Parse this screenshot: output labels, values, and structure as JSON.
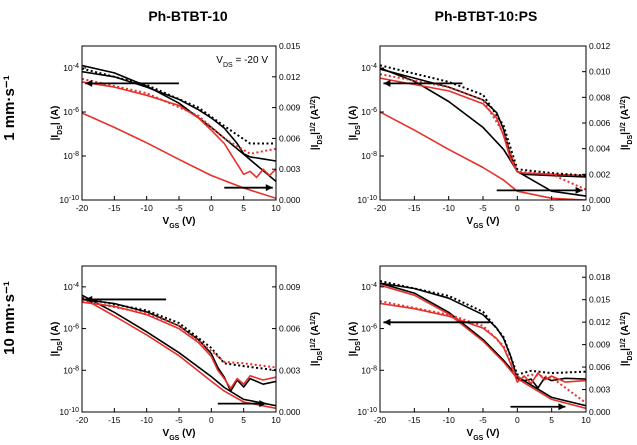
{
  "figure": {
    "column_titles": [
      "Ph-BTBT-10",
      "Ph-BTBT-10:PS"
    ],
    "row_titles": [
      "1 mm·s⁻¹",
      "10 mm·s⁻¹"
    ]
  },
  "colors": {
    "forward": "#000000",
    "reverse": "#e8302a"
  },
  "chart_data": [
    {
      "type": "line",
      "panel": "Ph-BTBT-10, 1 mm·s⁻¹",
      "xlabel": "V_GS (V)",
      "ylabel": "|I_DS| (A)",
      "y2label": "|I_DS|^1/2 (A^1/2)",
      "xlim": [
        -20,
        10
      ],
      "ylim_log": [
        1e-10,
        0.001
      ],
      "y2lim": [
        0,
        0.015
      ],
      "xticks": [
        "-20",
        "-15",
        "-10",
        "-5",
        "0",
        "5",
        "10"
      ],
      "yticks": [
        "10^-10",
        "10^-8",
        "10^-6",
        "10^-4"
      ],
      "y2ticks": [
        "0.000",
        "0.003",
        "0.006",
        "0.009",
        "0.012",
        "0.015"
      ],
      "annotation": "V_DS = -20 V",
      "series": [
        {
          "axis": "left",
          "color": "forward",
          "x": [
            -20,
            -15,
            -10,
            -5,
            0,
            5,
            10
          ],
          "y": [
            0.00013,
            6e-05,
            1.5e-05,
            2.5e-06,
            2e-07,
            1.2e-08,
            7e-10
          ]
        },
        {
          "axis": "left",
          "color": "reverse",
          "x": [
            -20,
            -15,
            -10,
            -5,
            0,
            5,
            10
          ],
          "y": [
            9e-07,
            2e-07,
            4e-08,
            7e-09,
            1.3e-09,
            3.5e-10,
            1.2e-10
          ]
        },
        {
          "axis": "right",
          "color": "forward",
          "x": [
            -20,
            -15,
            -10,
            -5,
            -2,
            0,
            2,
            4,
            5,
            6,
            8,
            10
          ],
          "y": [
            0.0125,
            0.012,
            0.011,
            0.0098,
            0.0088,
            0.008,
            0.007,
            0.0055,
            0.0045,
            0.0042,
            0.004,
            0.0038
          ]
        },
        {
          "axis": "right",
          "color": "reverse",
          "x": [
            -20,
            -15,
            -10,
            -5,
            -2,
            0,
            2,
            3,
            4,
            5,
            6,
            7,
            8,
            9,
            10
          ],
          "y": [
            0.0115,
            0.011,
            0.0102,
            0.0092,
            0.008,
            0.0068,
            0.0055,
            0.0045,
            0.0035,
            0.0025,
            0.0028,
            0.0022,
            0.003,
            0.0024,
            0.003
          ]
        },
        {
          "axis": "right",
          "color": "forward",
          "dashed": true,
          "x": [
            -20,
            -10,
            -2,
            2,
            6,
            10
          ],
          "y": [
            0.0128,
            0.0112,
            0.009,
            0.0072,
            0.0055,
            0.0055
          ]
        },
        {
          "axis": "right",
          "color": "reverse",
          "dashed": true,
          "x": [
            -20,
            -10,
            -2,
            2,
            6,
            10
          ],
          "y": [
            0.0118,
            0.0104,
            0.0082,
            0.006,
            0.0045,
            0.005
          ]
        }
      ],
      "arrows": [
        {
          "from": [
            -5,
            2e-05
          ],
          "to": [
            -19.5,
            2e-05
          ],
          "axis": "left"
        },
        {
          "from": [
            2,
            0.0012
          ],
          "to": [
            9.5,
            0.0012
          ],
          "axis": "right"
        }
      ]
    },
    {
      "type": "line",
      "panel": "Ph-BTBT-10:PS, 1 mm·s⁻¹",
      "xlabel": "V_GS (V)",
      "ylabel": "|I_DS| (A)",
      "y2label": "|I_DS|^1/2 (A^1/2)",
      "xlim": [
        -20,
        10
      ],
      "ylim_log": [
        1e-10,
        0.001
      ],
      "y2lim": [
        0,
        0.012
      ],
      "xticks": [
        "-20",
        "-15",
        "-10",
        "-5",
        "0",
        "5",
        "10"
      ],
      "yticks": [
        "10^-10",
        "10^-8",
        "10^-6",
        "10^-4"
      ],
      "y2ticks": [
        "0.000",
        "0.002",
        "0.004",
        "0.006",
        "0.008",
        "0.010",
        "0.012"
      ],
      "series": [
        {
          "axis": "left",
          "color": "forward",
          "x": [
            -20,
            -15,
            -10,
            -5,
            -2,
            0,
            5,
            10
          ],
          "y": [
            0.0001,
            2.5e-05,
            3e-06,
            2e-07,
            2e-08,
            2e-09,
            2.5e-10,
            1.5e-10
          ]
        },
        {
          "axis": "left",
          "color": "reverse",
          "x": [
            -20,
            -15,
            -10,
            -5,
            -2,
            0,
            5,
            10
          ],
          "y": [
            1e-06,
            1.5e-07,
            2e-08,
            3e-09,
            8e-10,
            2.5e-10,
            1.2e-10,
            1e-10
          ]
        },
        {
          "axis": "right",
          "color": "forward",
          "x": [
            -20,
            -15,
            -10,
            -5,
            -3,
            -2,
            -1,
            0,
            1,
            5,
            10
          ],
          "y": [
            0.0102,
            0.0095,
            0.0088,
            0.0078,
            0.0068,
            0.0055,
            0.0035,
            0.0022,
            0.002,
            0.0019,
            0.0018
          ]
        },
        {
          "axis": "right",
          "color": "reverse",
          "x": [
            -20,
            -15,
            -10,
            -5,
            -3,
            -2,
            -1,
            0,
            1,
            5,
            10
          ],
          "y": [
            0.0095,
            0.009,
            0.0085,
            0.0075,
            0.0064,
            0.005,
            0.0032,
            0.0022,
            0.0021,
            0.002,
            0.0019
          ]
        },
        {
          "axis": "right",
          "color": "forward",
          "dashed": true,
          "x": [
            -20,
            -10,
            -5,
            -2,
            0,
            5,
            10
          ],
          "y": [
            0.0105,
            0.0092,
            0.0082,
            0.0058,
            0.0024,
            0.0021,
            0.0019
          ]
        },
        {
          "axis": "right",
          "color": "reverse",
          "dashed": true,
          "x": [
            -20,
            -10,
            -5,
            -2,
            0,
            5,
            10
          ],
          "y": [
            0.0098,
            0.0088,
            0.0078,
            0.0052,
            0.0022,
            0.002,
            0.0008
          ]
        }
      ],
      "arrows": [
        {
          "from": [
            -8,
            2e-05
          ],
          "to": [
            -19.5,
            2e-05
          ],
          "axis": "left"
        },
        {
          "from": [
            -3,
            0.00075
          ],
          "to": [
            9.5,
            0.00075
          ],
          "axis": "right"
        }
      ]
    },
    {
      "type": "line",
      "panel": "Ph-BTBT-10, 10 mm·s⁻¹",
      "xlabel": "V_GS (V)",
      "ylabel": "|I_DS| (A)",
      "y2label": "|I_DS|^1/2 (A^1/2)",
      "xlim": [
        -20,
        10
      ],
      "ylim_log": [
        1e-10,
        0.001
      ],
      "y2lim": [
        0,
        0.0105
      ],
      "xticks": [
        "-20",
        "-15",
        "-10",
        "-5",
        "0",
        "5",
        "10"
      ],
      "yticks": [
        "10^-10",
        "10^-8",
        "10^-6",
        "10^-4"
      ],
      "y2ticks": [
        "0.000",
        "0.003",
        "0.006",
        "0.009"
      ],
      "series": [
        {
          "axis": "left",
          "color": "forward",
          "x": [
            -20,
            -15,
            -10,
            -5,
            0,
            2,
            5,
            10
          ],
          "y": [
            4e-05,
            6e-06,
            7e-07,
            7e-08,
            5e-09,
            1.5e-09,
            4e-10,
            2e-10
          ]
        },
        {
          "axis": "left",
          "color": "reverse",
          "x": [
            -20,
            -15,
            -10,
            -5,
            0,
            2,
            5,
            10
          ],
          "y": [
            3e-05,
            4e-06,
            5e-07,
            5e-08,
            3e-09,
            1e-09,
            3e-10,
            1.5e-10
          ]
        },
        {
          "axis": "right",
          "color": "forward",
          "x": [
            -20,
            -15,
            -10,
            -5,
            -2,
            0,
            1,
            2,
            3,
            4,
            5,
            6,
            8,
            10
          ],
          "y": [
            0.0081,
            0.0078,
            0.0072,
            0.0062,
            0.0052,
            0.0042,
            0.0032,
            0.0025,
            0.0015,
            0.0023,
            0.0018,
            0.0024,
            0.002,
            0.0022
          ]
        },
        {
          "axis": "right",
          "color": "reverse",
          "x": [
            -20,
            -15,
            -10,
            -5,
            -2,
            0,
            1,
            2,
            3,
            4,
            5,
            6,
            8,
            10
          ],
          "y": [
            0.0079,
            0.0076,
            0.007,
            0.006,
            0.005,
            0.004,
            0.003,
            0.0024,
            0.0017,
            0.0024,
            0.002,
            0.0026,
            0.0023,
            0.0025
          ]
        },
        {
          "axis": "right",
          "color": "forward",
          "dashed": true,
          "x": [
            -20,
            -10,
            -5,
            0,
            2,
            5,
            10
          ],
          "y": [
            0.0082,
            0.0073,
            0.0064,
            0.0046,
            0.0035,
            0.0033,
            0.003
          ]
        },
        {
          "axis": "right",
          "color": "reverse",
          "dashed": true,
          "x": [
            -20,
            -10,
            -5,
            0,
            2,
            5,
            10
          ],
          "y": [
            0.008,
            0.0071,
            0.0062,
            0.0044,
            0.0036,
            0.0035,
            0.0032
          ]
        }
      ],
      "arrows": [
        {
          "from": [
            -7,
            2.5e-05
          ],
          "to": [
            -19.5,
            2.5e-05
          ],
          "axis": "left"
        },
        {
          "from": [
            1,
            0.0006
          ],
          "to": [
            8.5,
            0.0006
          ],
          "axis": "right"
        }
      ]
    },
    {
      "type": "line",
      "panel": "Ph-BTBT-10:PS, 10 mm·s⁻¹",
      "xlabel": "V_GS (V)",
      "ylabel": "|I_DS| (A)",
      "y2label": "|I_DS|^1/2 (A^1/2)",
      "xlim": [
        -20,
        10
      ],
      "ylim_log": [
        1e-10,
        0.001
      ],
      "y2lim": [
        0,
        0.0195
      ],
      "xticks": [
        "-20",
        "-15",
        "-10",
        "-5",
        "0",
        "5",
        "10"
      ],
      "yticks": [
        "10^-10",
        "10^-8",
        "10^-6",
        "10^-4"
      ],
      "y2ticks": [
        "0.000",
        "0.003",
        "0.006",
        "0.009",
        "0.012",
        "0.015",
        "0.018"
      ],
      "series": [
        {
          "axis": "left",
          "color": "forward",
          "x": [
            -20,
            -15,
            -10,
            -5,
            -2,
            0,
            5,
            10
          ],
          "y": [
            0.00015,
            5e-05,
            6e-06,
            3e-07,
            3e-08,
            5e-09,
            5e-10,
            2e-10
          ]
        },
        {
          "axis": "left",
          "color": "reverse",
          "x": [
            -20,
            -15,
            -10,
            -5,
            -2,
            0,
            5,
            10
          ],
          "y": [
            0.00012,
            4e-05,
            5e-06,
            2.5e-07,
            2.5e-08,
            4e-09,
            4e-10,
            1.5e-10
          ]
        },
        {
          "axis": "right",
          "color": "forward",
          "x": [
            -20,
            -15,
            -10,
            -5,
            -3,
            -2,
            -1,
            0,
            1,
            2,
            3,
            4,
            5,
            7,
            10
          ],
          "y": [
            0.0172,
            0.0165,
            0.0152,
            0.013,
            0.0112,
            0.0098,
            0.0075,
            0.0045,
            0.0042,
            0.0044,
            0.0032,
            0.0046,
            0.0042,
            0.0045,
            0.0044
          ]
        },
        {
          "axis": "right",
          "color": "reverse",
          "x": [
            -20,
            -15,
            -10,
            -5,
            -3,
            -2,
            -1,
            0,
            1,
            2,
            3,
            4,
            5,
            7,
            10
          ],
          "y": [
            0.0145,
            0.0138,
            0.0128,
            0.0112,
            0.0098,
            0.0086,
            0.0065,
            0.004,
            0.0048,
            0.0038,
            0.0052,
            0.0043,
            0.0048,
            0.004,
            0.0042
          ]
        },
        {
          "axis": "right",
          "color": "forward",
          "dashed": true,
          "x": [
            -20,
            -10,
            -5,
            -2,
            0,
            2,
            5,
            10
          ],
          "y": [
            0.0175,
            0.0155,
            0.0134,
            0.01,
            0.005,
            0.0055,
            0.0052,
            0.0054
          ]
        },
        {
          "axis": "right",
          "color": "reverse",
          "dashed": true,
          "x": [
            -20,
            -10,
            -5,
            -2,
            0,
            2,
            5,
            10
          ],
          "y": [
            0.0148,
            0.013,
            0.0115,
            0.0088,
            0.0045,
            0.005,
            0.0046,
            0.0012
          ]
        }
      ],
      "arrows": [
        {
          "from": [
            -4,
            2e-06
          ],
          "to": [
            -19.5,
            2e-06
          ],
          "axis": "left"
        },
        {
          "from": [
            -1,
            0.0007
          ],
          "to": [
            7,
            0.0007
          ],
          "axis": "right"
        }
      ]
    }
  ]
}
